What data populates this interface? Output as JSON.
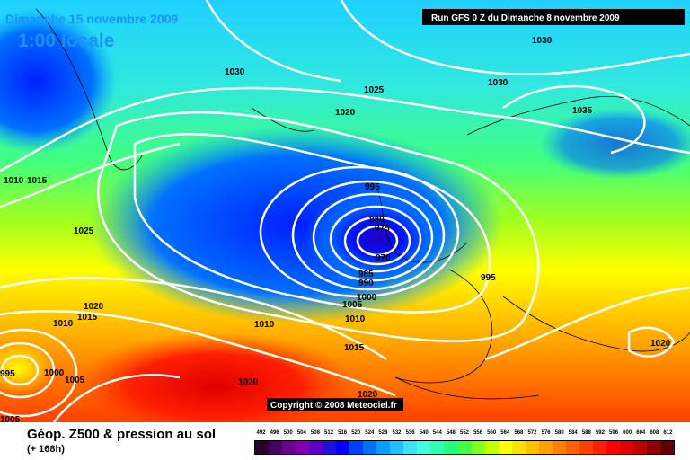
{
  "header": {
    "date": "Dimanche 15 novembre 2009",
    "time": "1:00 locale",
    "run_info": "Run GFS 0 Z du Dimanche 8 novembre 2009"
  },
  "copyright": "Copyright © 2008 Meteociel.fr",
  "legend": {
    "title": "Géop. Z500 & pression au sol",
    "subtitle": "(+ 168h)",
    "scale_values": [
      "492",
      "496",
      "500",
      "504",
      "508",
      "512",
      "516",
      "520",
      "524",
      "528",
      "532",
      "536",
      "540",
      "544",
      "548",
      "552",
      "556",
      "560",
      "564",
      "568",
      "572",
      "576",
      "580",
      "584",
      "588",
      "592",
      "596",
      "600",
      "604",
      "608",
      "612"
    ],
    "scale_colors": [
      "#2a0030",
      "#4a0060",
      "#6a0090",
      "#8000b0",
      "#5a00c8",
      "#2010d8",
      "#0000ff",
      "#0040ff",
      "#0070ff",
      "#00a0ff",
      "#20c0ff",
      "#40e0ff",
      "#40ffe0",
      "#30ffb0",
      "#20ff80",
      "#40ff40",
      "#80ff20",
      "#c0ff00",
      "#ffff00",
      "#ffe000",
      "#ffc000",
      "#ffa000",
      "#ff8000",
      "#ff6000",
      "#ff4000",
      "#ff2000",
      "#ff0000",
      "#e00000",
      "#c00000",
      "#900000",
      "#600000"
    ]
  },
  "isobar_labels": [
    "1030",
    "1030",
    "1030",
    "1035",
    "1025",
    "1020",
    "1010",
    "1015",
    "1025",
    "995",
    "980",
    "975",
    "970",
    "985",
    "990",
    "1000",
    "1005",
    "1010",
    "995",
    "1020",
    "1010",
    "1015",
    "1010",
    "1015",
    "1020",
    "1020",
    "1020",
    "1000",
    "1005",
    "995",
    "1005",
    "1020"
  ]
}
